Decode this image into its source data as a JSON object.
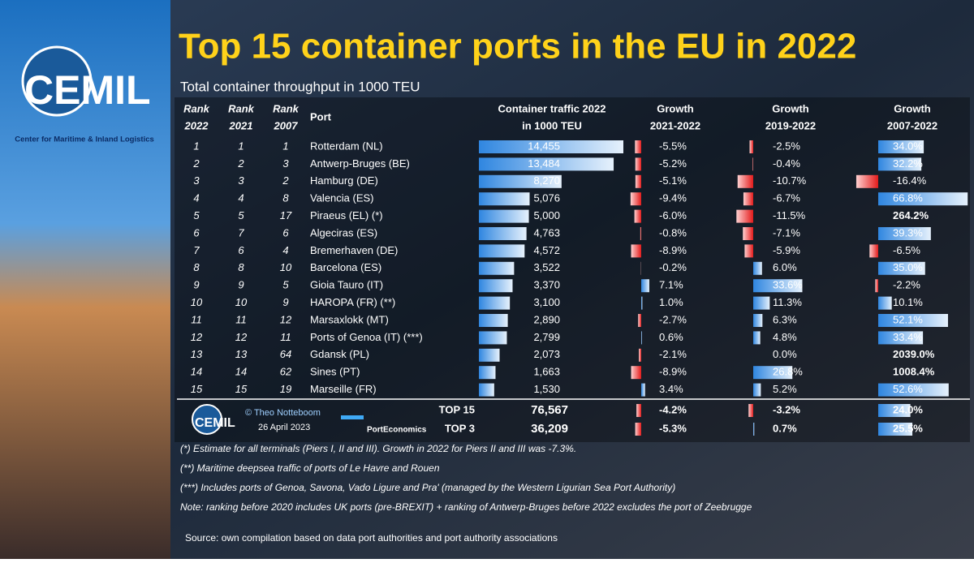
{
  "header": {
    "title": "Top 15 container ports in the EU in 2022",
    "subtitle": "Total container throughput in 1000 TEU",
    "logo": "CEMIL",
    "logo_caption": "Center for Maritime & Inland Logistics"
  },
  "table": {
    "columns": [
      [
        "Rank",
        "2022"
      ],
      [
        "Rank",
        "2021"
      ],
      [
        "Rank",
        "2007"
      ],
      [
        "Port"
      ],
      [
        "Container traffic 2022",
        "in 1000 TEU"
      ],
      [
        "Growth",
        "2021-2022"
      ],
      [
        "Growth",
        "2019-2022"
      ],
      [
        "Growth",
        "2007-2022"
      ]
    ],
    "rows": [
      [
        1,
        1,
        1,
        "Rotterdam (NL)",
        {
          "value": 14455,
          "label": "14,455"
        },
        {
          "value": -5.5,
          "label": "-5.5%"
        },
        {
          "value": -2.5,
          "label": "-2.5%"
        },
        {
          "value": 34.0,
          "label": "34.0%"
        }
      ],
      [
        2,
        2,
        3,
        "Antwerp-Bruges (BE)",
        {
          "value": 13484,
          "label": "13,484"
        },
        {
          "value": -5.2,
          "label": "-5.2%"
        },
        {
          "value": -0.4,
          "label": "-0.4%"
        },
        {
          "value": 32.2,
          "label": "32.2%"
        }
      ],
      [
        3,
        3,
        2,
        "Hamburg (DE)",
        {
          "value": 8270,
          "label": "8,270"
        },
        {
          "value": -5.1,
          "label": "-5.1%"
        },
        {
          "value": -10.7,
          "label": "-10.7%"
        },
        {
          "value": -16.4,
          "label": "-16.4%"
        }
      ],
      [
        4,
        4,
        8,
        "Valencia (ES)",
        {
          "value": 5076,
          "label": "5,076"
        },
        {
          "value": -9.4,
          "label": "-9.4%"
        },
        {
          "value": -6.7,
          "label": "-6.7%"
        },
        {
          "value": 66.8,
          "label": "66.8%"
        }
      ],
      [
        5,
        5,
        17,
        "Piraeus (EL) (*)",
        {
          "value": 5000,
          "label": "5,000"
        },
        {
          "value": -6.0,
          "label": "-6.0%"
        },
        {
          "value": -11.5,
          "label": "-11.5%"
        },
        {
          "value": 264.2,
          "label": "264.2%"
        }
      ],
      [
        6,
        7,
        6,
        "Algeciras (ES)",
        {
          "value": 4763,
          "label": "4,763"
        },
        {
          "value": -0.8,
          "label": "-0.8%"
        },
        {
          "value": -7.1,
          "label": "-7.1%"
        },
        {
          "value": 39.3,
          "label": "39.3%"
        }
      ],
      [
        7,
        6,
        4,
        "Bremerhaven (DE)",
        {
          "value": 4572,
          "label": "4,572"
        },
        {
          "value": -8.9,
          "label": "-8.9%"
        },
        {
          "value": -5.9,
          "label": "-5.9%"
        },
        {
          "value": -6.5,
          "label": "-6.5%"
        }
      ],
      [
        8,
        8,
        10,
        "Barcelona (ES)",
        {
          "value": 3522,
          "label": "3,522"
        },
        {
          "value": -0.2,
          "label": "-0.2%"
        },
        {
          "value": 6.0,
          "label": "6.0%"
        },
        {
          "value": 35.0,
          "label": "35.0%"
        }
      ],
      [
        9,
        9,
        5,
        "Gioia Tauro (IT)",
        {
          "value": 3370,
          "label": "3,370"
        },
        {
          "value": 7.1,
          "label": "7.1%"
        },
        {
          "value": 33.6,
          "label": "33.6%"
        },
        {
          "value": -2.2,
          "label": "-2.2%"
        }
      ],
      [
        10,
        10,
        9,
        "HAROPA (FR) (**)",
        {
          "value": 3100,
          "label": "3,100"
        },
        {
          "value": 1.0,
          "label": "1.0%"
        },
        {
          "value": 11.3,
          "label": "11.3%"
        },
        {
          "value": 10.1,
          "label": "10.1%"
        }
      ],
      [
        11,
        11,
        12,
        "Marsaxlokk (MT)",
        {
          "value": 2890,
          "label": "2,890"
        },
        {
          "value": -2.7,
          "label": "-2.7%"
        },
        {
          "value": 6.3,
          "label": "6.3%"
        },
        {
          "value": 52.1,
          "label": "52.1%"
        }
      ],
      [
        12,
        12,
        11,
        "Ports of Genoa (IT) (***)",
        {
          "value": 2799,
          "label": "2,799"
        },
        {
          "value": 0.6,
          "label": "0.6%"
        },
        {
          "value": 4.8,
          "label": "4.8%"
        },
        {
          "value": 33.4,
          "label": "33.4%"
        }
      ],
      [
        13,
        13,
        64,
        "Gdansk (PL)",
        {
          "value": 2073,
          "label": "2,073"
        },
        {
          "value": -2.1,
          "label": "-2.1%"
        },
        {
          "value": 0.0,
          "label": "0.0%"
        },
        {
          "value": 2039.0,
          "label": "2039.0%"
        }
      ],
      [
        14,
        14,
        62,
        "Sines (PT)",
        {
          "value": 1663,
          "label": "1,663"
        },
        {
          "value": -8.9,
          "label": "-8.9%"
        },
        {
          "value": 26.8,
          "label": "26.8%"
        },
        {
          "value": 1008.4,
          "label": "1008.4%"
        }
      ],
      [
        15,
        15,
        19,
        "Marseille (FR)",
        {
          "value": 1530,
          "label": "1,530"
        },
        {
          "value": 3.4,
          "label": "3.4%"
        },
        {
          "value": 5.2,
          "label": "5.2%"
        },
        {
          "value": 52.6,
          "label": "52.6%"
        }
      ]
    ],
    "totals": [
      [
        "TOP 15",
        {
          "value": 76567,
          "label": "76,567"
        },
        {
          "value": -4.2,
          "label": "-4.2%"
        },
        {
          "value": -3.2,
          "label": "-3.2%"
        },
        {
          "value": 24.0,
          "label": "24.0%"
        }
      ],
      [
        "TOP 3",
        {
          "value": 36209,
          "label": "36,209"
        },
        {
          "value": -5.3,
          "label": "-5.3%"
        },
        {
          "value": 0.7,
          "label": "0.7%"
        },
        {
          "value": 25.5,
          "label": "25.5%"
        }
      ]
    ]
  },
  "credits": {
    "author": "© Theo Notteboom",
    "date": "26 April 2023",
    "brand": "PortEconomics",
    "logo": "CEMIL"
  },
  "notes": [
    "(*) Estimate for all terminals (Piers I, II and III). Growth in 2022 for Piers II and III was -7.3%.",
    "(**) Maritime deepsea traffic of ports of Le Havre and Rouen",
    "(***) Includes ports of Genoa, Savona, Vado Ligure and Pra' (managed by the Western Ligurian Sea Port Authority)",
    "Note: ranking before 2020 includes UK ports (pre-BREXIT) + ranking of Antwerp-Bruges before 2022 excludes the port of Zeebrugge"
  ],
  "source": "Source: own compilation based on data port authorities and port authority associations"
}
